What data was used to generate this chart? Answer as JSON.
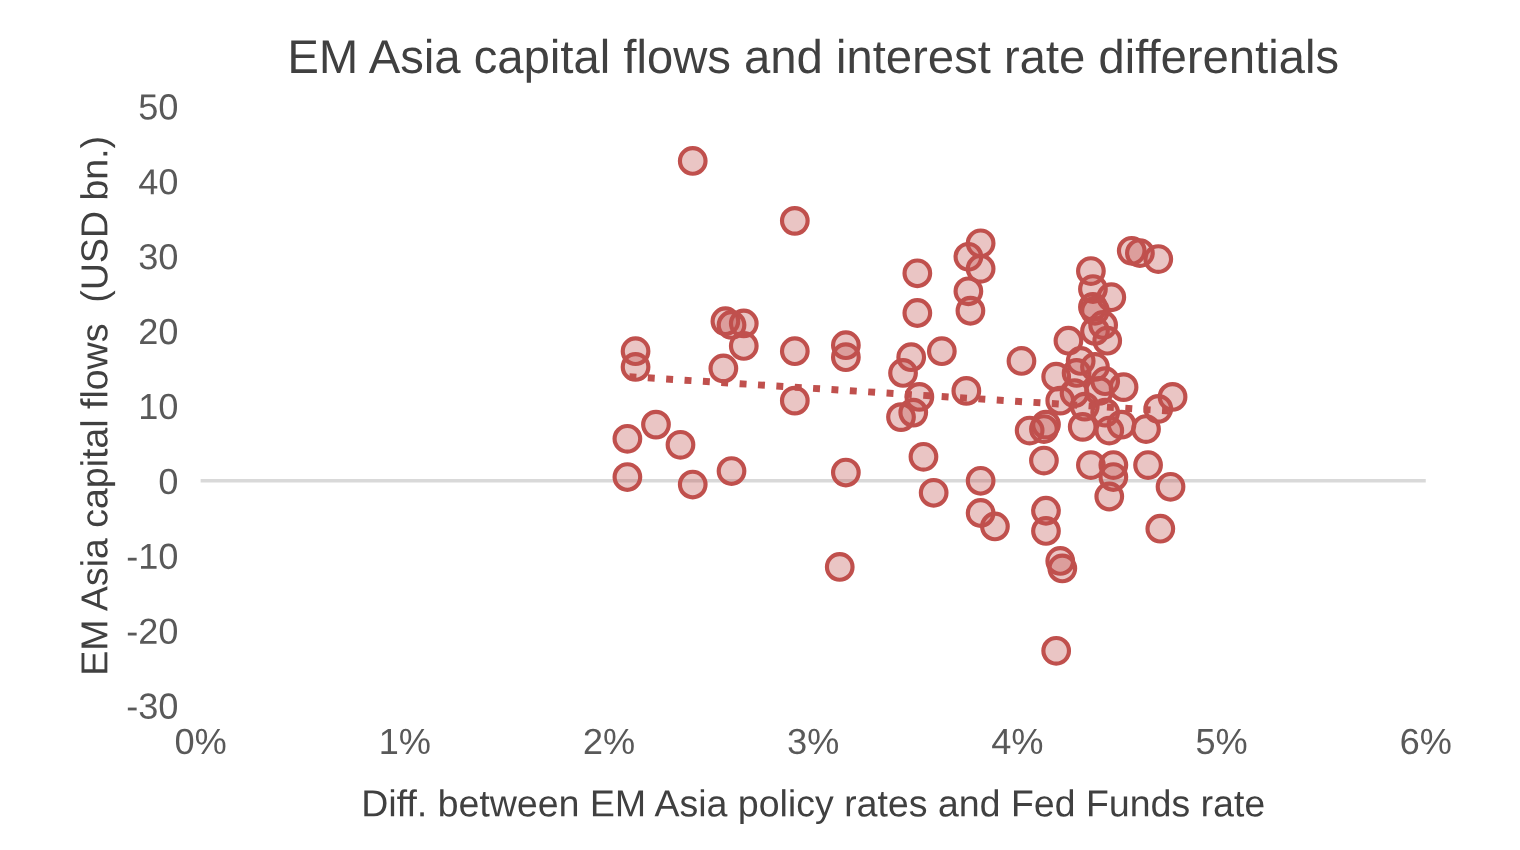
{
  "chart_data": {
    "type": "scatter",
    "title": "EM Asia capital flows and interest rate differentials",
    "xlabel": "Diff. between EM Asia policy rates and Fed Funds rate",
    "ylabel": "EM Asia capital flows  (USD bn.)",
    "xlim": [
      0,
      6
    ],
    "xticks": [
      {
        "value": 0,
        "label": "0%"
      },
      {
        "value": 1,
        "label": "1%"
      },
      {
        "value": 2,
        "label": "2%"
      },
      {
        "value": 3,
        "label": "3%"
      },
      {
        "value": 4,
        "label": "4%"
      },
      {
        "value": 5,
        "label": "5%"
      },
      {
        "value": 6,
        "label": "6%"
      }
    ],
    "ylim": [
      -30,
      50
    ],
    "yticks": [
      -30,
      -20,
      -10,
      0,
      10,
      20,
      30,
      40,
      50
    ],
    "grid": false,
    "marker": "circle",
    "ref_lines": [
      {
        "axis": "y",
        "value": 0,
        "color": "#d9d9d9"
      }
    ],
    "series": [
      {
        "color": "#c0504d",
        "x": [
          2.13,
          2.13,
          2.09,
          2.09,
          2.23,
          2.35,
          2.41,
          2.41,
          2.57,
          2.6,
          2.66,
          2.66,
          2.56,
          2.6,
          2.91,
          2.91,
          2.91,
          3.16,
          3.16,
          3.16,
          3.13,
          3.43,
          3.44,
          3.48,
          3.51,
          3.51,
          3.49,
          3.52,
          3.54,
          3.59,
          3.63,
          3.75,
          3.76,
          3.76,
          3.77,
          3.82,
          3.82,
          3.82,
          3.82,
          3.89,
          4.02,
          4.06,
          4.14,
          4.13,
          4.13,
          4.14,
          4.14,
          4.21,
          4.22,
          4.19,
          4.19,
          4.21,
          4.25,
          4.28,
          4.29,
          4.31,
          4.32,
          4.33,
          4.36,
          4.37,
          4.38,
          4.38,
          4.36,
          4.4,
          4.42,
          4.43,
          4.45,
          4.46,
          4.43,
          4.44,
          4.47,
          4.47,
          4.45,
          4.52,
          4.56,
          4.6,
          4.63,
          4.64,
          4.69,
          4.76,
          4.7,
          4.75,
          4.69,
          4.51,
          4.37,
          4.38
        ],
        "values": [
          17.3,
          15.2,
          5.6,
          0.5,
          7.5,
          4.8,
          42.7,
          -0.5,
          21.3,
          20.8,
          21,
          18,
          15,
          1.3,
          34.7,
          17.3,
          10.7,
          18.1,
          16.5,
          1.1,
          -11.5,
          8.5,
          14.4,
          16.5,
          27.7,
          22.4,
          9.1,
          11.2,
          3.2,
          -1.6,
          17.3,
          12,
          29.9,
          25.3,
          22.7,
          31.7,
          28.3,
          0,
          -4.3,
          -6.1,
          16,
          6.7,
          7.5,
          6.9,
          2.7,
          -4,
          -6.7,
          -10.7,
          -11.7,
          -22.7,
          13.9,
          10.7,
          18.7,
          11.7,
          14.4,
          16,
          7.2,
          9.9,
          2.1,
          23.2,
          22.7,
          15.2,
          28,
          12,
          20.8,
          13.3,
          6.7,
          24.5,
          9.1,
          18.7,
          2.1,
          0.5,
          -2.1,
          12.5,
          30.7,
          30.4,
          6.9,
          2.1,
          29.6,
          11.2,
          -6.4,
          -0.8,
          9.6,
          7.5,
          25.6,
          20
        ]
      },
      {
        "type": "line",
        "color": "#c0504d",
        "line_style": "dotted",
        "marker": "none",
        "x": [
          2.1,
          4.75
        ],
        "values": [
          13.9,
          9.3
        ]
      }
    ]
  }
}
